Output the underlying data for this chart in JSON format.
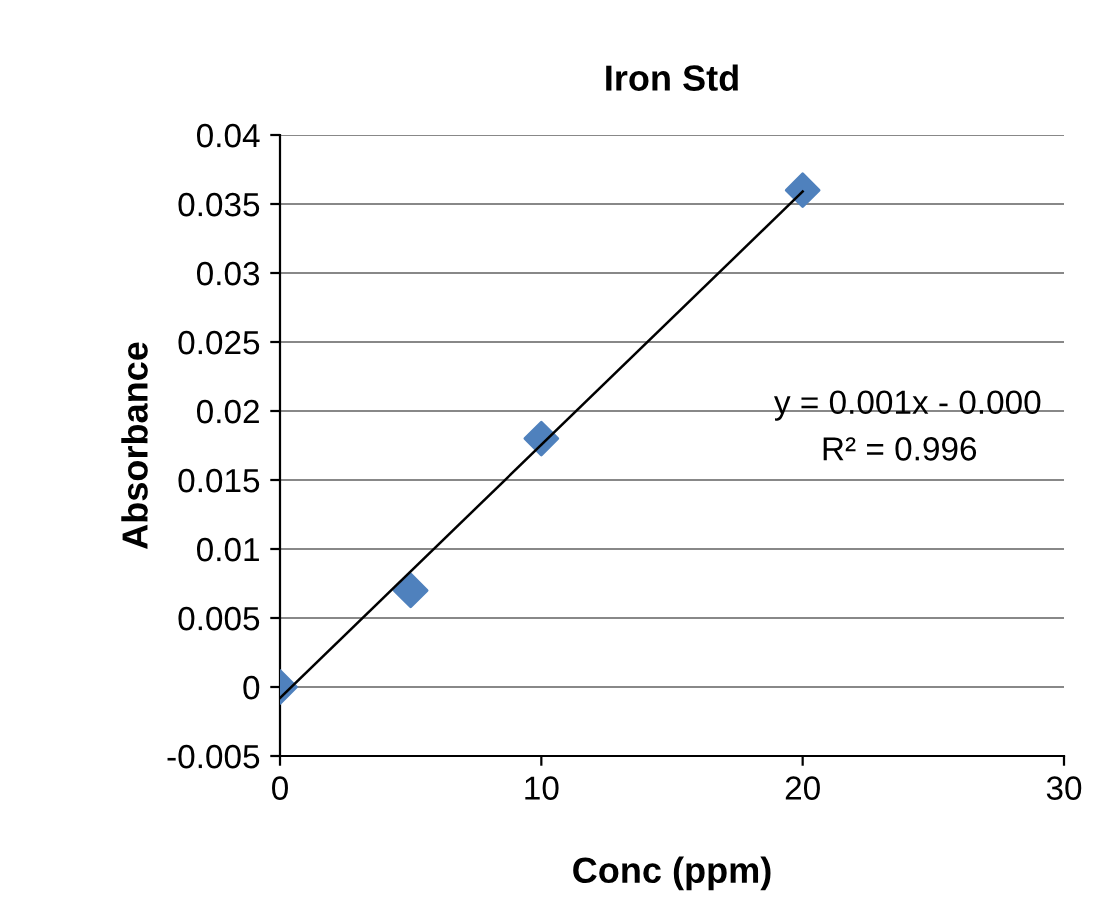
{
  "chart_data": {
    "type": "scatter",
    "title": "Iron Std",
    "xlabel": "Conc (ppm)",
    "ylabel": "Absorbance",
    "series": [
      {
        "color": "#4f81bd",
        "marker": "diamond",
        "x": [
          0,
          5,
          10,
          20
        ],
        "values": [
          0,
          0.007,
          0.018,
          0.036
        ]
      },
      {
        "type": "line",
        "color": "#000000",
        "marker": "none",
        "x": [
          0,
          20
        ],
        "values": [
          -0.0008,
          0.0359
        ]
      }
    ],
    "xlim": [
      0,
      30
    ],
    "xticks": [
      0,
      10,
      20,
      30
    ],
    "ylim": [
      -0.005,
      0.04
    ],
    "yticks": [
      -0.005,
      0,
      0.005,
      0.01,
      0.015,
      0.02,
      0.025,
      0.03,
      0.035,
      0.04
    ],
    "grid": "y",
    "legend": false,
    "annotations": [
      "y = 0.001x - 0.000",
      "R² = 0.996"
    ]
  }
}
